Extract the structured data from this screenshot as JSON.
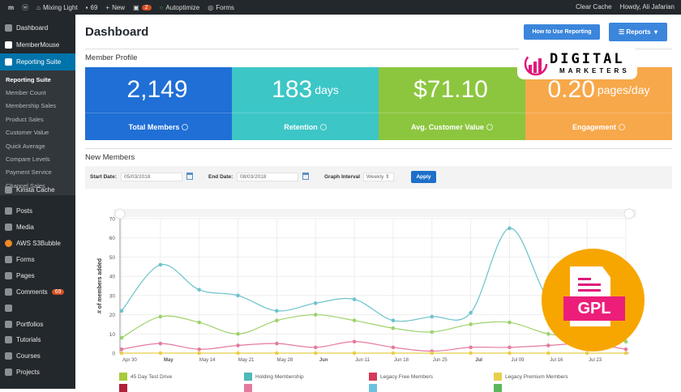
{
  "topbar": {
    "site": "Mixing Light",
    "comments": "69",
    "new": "New",
    "updates": "2",
    "autoptimize": "Autoptimize",
    "forms": "Forms",
    "clear_cache": "Clear Cache",
    "howdy": "Howdy, Ali Jafarian"
  },
  "sidebar": {
    "items": [
      {
        "label": "Dashboard"
      },
      {
        "label": "MemberMouse"
      },
      {
        "label": "Reporting Suite",
        "active": true
      }
    ],
    "submenu": [
      "Reporting Suite",
      "Member Count",
      "Membership Sales",
      "Product Sales",
      "Customer Value",
      "Quick Average",
      "Compare Levels",
      "Payment Service",
      "Channel Sales"
    ],
    "items2": [
      {
        "label": "Kinsta Cache"
      },
      {
        "label": "Posts"
      },
      {
        "label": "Media"
      },
      {
        "label": "AWS S3Bubble"
      },
      {
        "label": "Forms"
      },
      {
        "label": "Pages"
      },
      {
        "label": "Comments",
        "badge": "69"
      },
      {
        "label": ""
      },
      {
        "label": "Portfolios"
      },
      {
        "label": "Tutorials"
      },
      {
        "label": "Courses"
      },
      {
        "label": "Projects"
      }
    ]
  },
  "header": {
    "title": "Dashboard",
    "how_to": "How to Use Reporting",
    "reports": "Reports"
  },
  "member_profile": {
    "title": "Member Profile",
    "cards": [
      {
        "value": "2,149",
        "unit": "",
        "label": "Total Members",
        "color": "#1f6fd6"
      },
      {
        "value": "183",
        "unit": "days",
        "label": "Retention",
        "color": "#3cc6c6"
      },
      {
        "value": "$71.10",
        "unit": "",
        "label": "Avg. Customer Value",
        "color": "#8cc63f"
      },
      {
        "value": "0.20",
        "unit": "pages/day",
        "label": "Engagement",
        "color": "#f7a84a"
      }
    ]
  },
  "new_members": {
    "title": "New Members",
    "start_label": "Start Date:",
    "start": "05/03/2018",
    "end_label": "End Date:",
    "end": "08/03/2018",
    "interval_label": "Graph Interval",
    "interval": "Weekly",
    "apply": "Apply"
  },
  "chart_data": {
    "type": "line",
    "ylabel": "# of members added",
    "ylim": [
      0,
      70
    ],
    "yticks": [
      0,
      10,
      20,
      30,
      40,
      50,
      60,
      70
    ],
    "xticklabels": [
      "Apr 30",
      "May",
      "May 14",
      "May 21",
      "May 28",
      "Jun",
      "Jun 11",
      "Jun 18",
      "Jun 25",
      "Jul",
      "Jul 09",
      "Jul 16",
      "Jul 23"
    ],
    "series": [
      {
        "name": "Holding Membership",
        "color": "#6cc2cc",
        "values": [
          22,
          46,
          33,
          30,
          22,
          26,
          28,
          17,
          19,
          21,
          65,
          28,
          12,
          6
        ]
      },
      {
        "color": "#9dd26a",
        "values": [
          8,
          19,
          16,
          10,
          17,
          20,
          17,
          13,
          11,
          15,
          16,
          10,
          8,
          6
        ]
      },
      {
        "color": "#e57aa0",
        "values": [
          2,
          5,
          2,
          4,
          5,
          3,
          6,
          3,
          1,
          3,
          3,
          4,
          5,
          2
        ]
      },
      {
        "name": "Legacy Premium Members",
        "color": "#e8cf4a",
        "values": [
          0,
          0,
          0,
          0,
          0,
          0,
          0,
          0,
          0,
          0,
          0,
          0,
          0,
          0
        ]
      }
    ],
    "legend": [
      {
        "label": "45 Day Test Drive",
        "color": "#a7cc3e"
      },
      {
        "label": "Holding Membership",
        "color": "#4fb8b8"
      },
      {
        "label": "Legacy Free Members",
        "color": "#d63a5a"
      },
      {
        "label": "Legacy Premium Members",
        "color": "#e8cf4a"
      },
      {
        "label": "",
        "color": "#b0203a"
      },
      {
        "label": "",
        "color": "#e57aa0"
      },
      {
        "label": "",
        "color": "#6cc2dc"
      },
      {
        "label": "",
        "color": "#5cb85c"
      }
    ]
  },
  "watermark": {
    "line1": "DIGITAL",
    "line2": "MARKETERS",
    "badge": "GPL"
  }
}
